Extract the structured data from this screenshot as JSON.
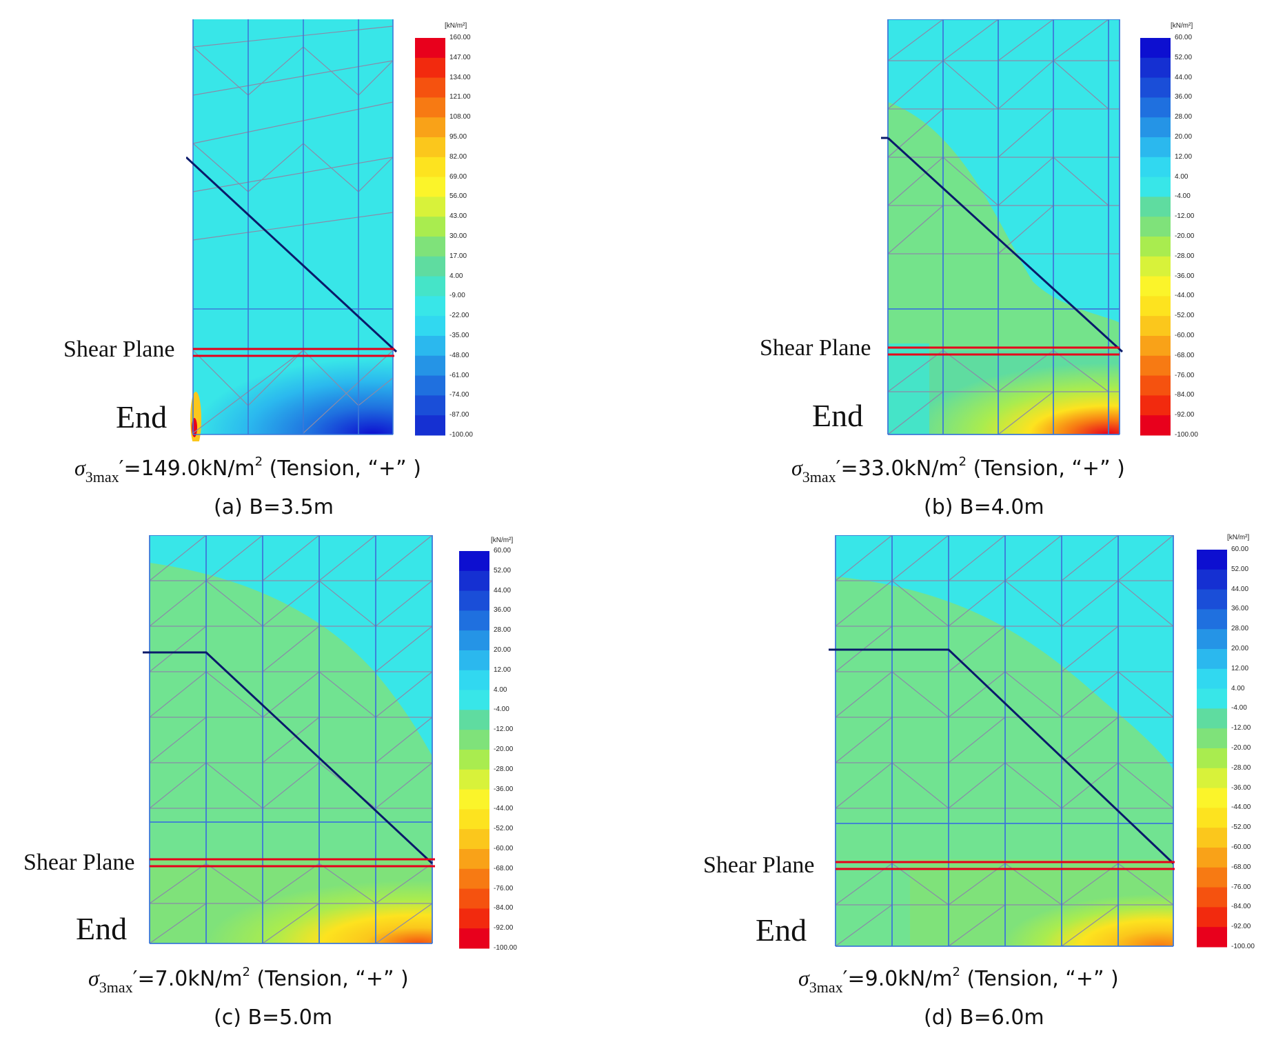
{
  "colors": {
    "tension_scale": [
      "#e8001c",
      "#f22a0e",
      "#f5520f",
      "#f77a13",
      "#f9a218",
      "#fbc71c",
      "#fde31f",
      "#fbf42a",
      "#d8f23a",
      "#a9ec4f",
      "#7fe27a",
      "#5fdca0",
      "#45e4c8",
      "#38e6e8",
      "#31d8f0",
      "#2bb8ee",
      "#2594e6",
      "#1f70df",
      "#1a4ed8",
      "#1530d2",
      "#0d0fd0"
    ],
    "compression_scale": [
      "#0d0fd0",
      "#1530d2",
      "#1a4ed8",
      "#1f70df",
      "#2594e6",
      "#2bb8ee",
      "#31d8f0",
      "#38e6e8",
      "#5fdca0",
      "#7fe27a",
      "#a9ec4f",
      "#d8f23a",
      "#fbf42a",
      "#fde31f",
      "#fbc71c",
      "#f9a218",
      "#f77a13",
      "#f5520f",
      "#f22a0e",
      "#e8001c"
    ],
    "mesh": "#3c78d8",
    "surface_line": "#0a1a6a",
    "shear_line": "#e6001a"
  },
  "panels": [
    {
      "id": "a",
      "plane_label": "Shear Plane",
      "end_label": "End",
      "legend_unit": "[kN/m²]",
      "legend_ticks": [
        "160.00",
        "147.00",
        "134.00",
        "121.00",
        "108.00",
        "95.00",
        "82.00",
        "69.00",
        "56.00",
        "43.00",
        "30.00",
        "17.00",
        "4.00",
        "-9.00",
        "-22.00",
        "-35.00",
        "-48.00",
        "-61.00",
        "-74.00",
        "-87.00",
        "-100.00"
      ],
      "sigma_value": "=149.0kN/m",
      "sigma_suffix": "(Tension,   “+” )",
      "caption": "(a) B=3.5m"
    },
    {
      "id": "b",
      "plane_label": "Shear Plane",
      "end_label": "End",
      "legend_unit": "[kN/m²]",
      "legend_ticks": [
        "60.00",
        "52.00",
        "44.00",
        "36.00",
        "28.00",
        "20.00",
        "12.00",
        "4.00",
        "-4.00",
        "-12.00",
        "-20.00",
        "-28.00",
        "-36.00",
        "-44.00",
        "-52.00",
        "-60.00",
        "-68.00",
        "-76.00",
        "-84.00",
        "-92.00",
        "-100.00"
      ],
      "sigma_value": "=33.0kN/m",
      "sigma_suffix": "(Tension,   “+” )",
      "caption": "(b) B=4.0m"
    },
    {
      "id": "c",
      "plane_label": "Shear Plane",
      "end_label": "End",
      "legend_unit": "[kN/m²]",
      "legend_ticks": [
        "60.00",
        "52.00",
        "44.00",
        "36.00",
        "28.00",
        "20.00",
        "12.00",
        "4.00",
        "-4.00",
        "-12.00",
        "-20.00",
        "-28.00",
        "-36.00",
        "-44.00",
        "-52.00",
        "-60.00",
        "-68.00",
        "-76.00",
        "-84.00",
        "-92.00",
        "-100.00"
      ],
      "sigma_value": "=7.0kN/m",
      "sigma_suffix": "(Tension,   “+” )",
      "caption": "(c) B=5.0m"
    },
    {
      "id": "d",
      "plane_label": "Shear Plane",
      "end_label": "End",
      "legend_unit": "[kN/m²]",
      "legend_ticks": [
        "60.00",
        "52.00",
        "44.00",
        "36.00",
        "28.00",
        "20.00",
        "12.00",
        "4.00",
        "-4.00",
        "-12.00",
        "-20.00",
        "-28.00",
        "-36.00",
        "-44.00",
        "-52.00",
        "-60.00",
        "-68.00",
        "-76.00",
        "-84.00",
        "-92.00",
        "-100.00"
      ],
      "sigma_value": "=9.0kN/m",
      "sigma_suffix": "(Tension,   “+” )",
      "caption": "(d) B=6.0m"
    }
  ],
  "sigma_symbol": "σ",
  "sigma_sub": "3max",
  "sigma_prime": "′",
  "sigma_sup": "2"
}
